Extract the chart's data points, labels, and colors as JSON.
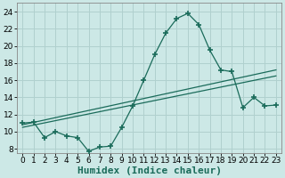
{
  "xlabel": "Humidex (Indice chaleur)",
  "ylabel": "",
  "xlim": [
    -0.5,
    23.5
  ],
  "ylim": [
    7.5,
    25
  ],
  "yticks": [
    8,
    10,
    12,
    14,
    16,
    18,
    20,
    22,
    24
  ],
  "xticks": [
    0,
    1,
    2,
    3,
    4,
    5,
    6,
    7,
    8,
    9,
    10,
    11,
    12,
    13,
    14,
    15,
    16,
    17,
    18,
    19,
    20,
    21,
    22,
    23
  ],
  "bg_color": "#cce8e6",
  "grid_color": "#b0d0ce",
  "line_color": "#1a6b5a",
  "curve1_x": [
    0,
    1,
    2,
    3,
    4,
    5,
    6,
    7,
    8,
    9,
    10,
    11,
    12,
    13,
    14,
    15,
    16,
    17,
    18,
    19,
    20,
    21,
    22,
    23
  ],
  "curve1_y": [
    11.0,
    11.1,
    9.3,
    10.0,
    9.5,
    9.3,
    7.7,
    8.2,
    8.3,
    10.5,
    13.0,
    16.0,
    19.0,
    21.5,
    23.2,
    23.8,
    22.5,
    19.5,
    17.2,
    17.0,
    12.8,
    14.0,
    13.0,
    13.1
  ],
  "curve2_x": [
    0,
    23
  ],
  "curve2_y": [
    10.8,
    17.2
  ],
  "curve3_x": [
    0,
    23
  ],
  "curve3_y": [
    10.5,
    16.5
  ],
  "marker": "+",
  "marker_size": 4.0,
  "line_width": 0.9,
  "xlabel_fontsize": 8,
  "tick_fontsize": 6.5
}
